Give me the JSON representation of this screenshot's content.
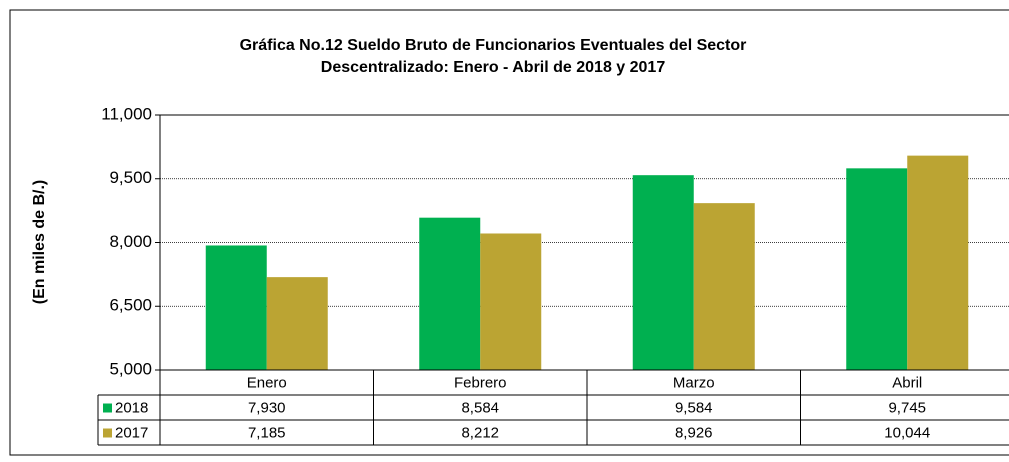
{
  "chart_data": {
    "type": "bar",
    "title": [
      "Gráfica No.12 Sueldo Bruto de Funcionarios Eventuales del Sector",
      "Descentralizado: Enero - Abril de 2018 y 2017"
    ],
    "y_label": "(En miles de B/.)",
    "categories": [
      "Enero",
      "Febrero",
      "Marzo",
      "Abril"
    ],
    "series": [
      {
        "name": "2018",
        "color": "#00b050",
        "values": [
          7930,
          8584,
          9584,
          9745
        ],
        "value_labels": [
          "7,930",
          "8,584",
          "9,584",
          "9,745"
        ]
      },
      {
        "name": "2017",
        "color": "#bba433",
        "values": [
          7185,
          8212,
          8926,
          10044
        ],
        "value_labels": [
          "7,185",
          "8,212",
          "8,926",
          "10,044"
        ]
      }
    ],
    "ylim": [
      5000,
      11000
    ],
    "yticks": [
      {
        "value": 5000,
        "label": "5,000"
      },
      {
        "value": 6500,
        "label": "6,500"
      },
      {
        "value": 8000,
        "label": "8,000"
      },
      {
        "value": 9500,
        "label": "9,500"
      },
      {
        "value": 11000,
        "label": "11,000"
      }
    ],
    "grid": true,
    "data_table": true
  }
}
